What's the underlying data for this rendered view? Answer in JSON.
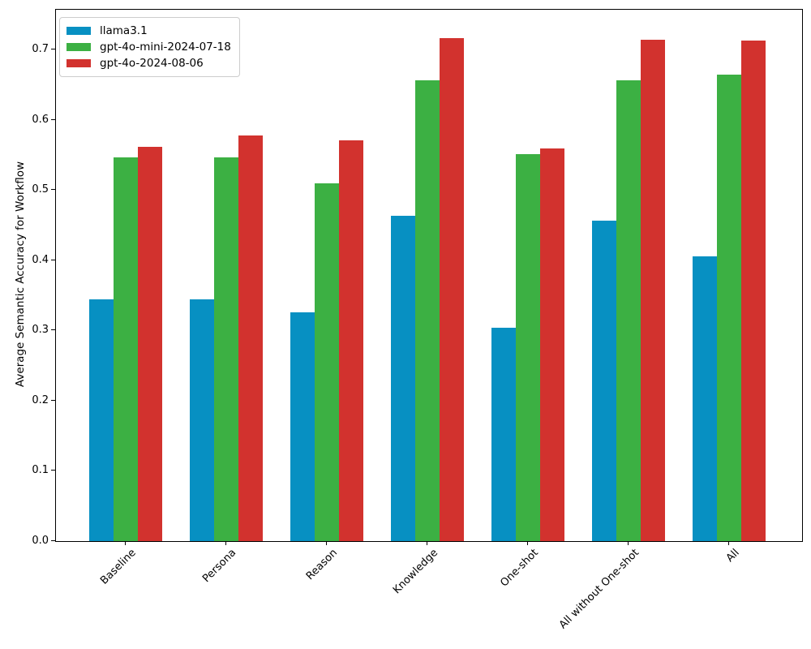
{
  "chart_data": {
    "type": "bar",
    "title": "",
    "xlabel": "",
    "ylabel": "Average Semantic Accuracy for Workflow",
    "categories": [
      "Baseline",
      "Persona",
      "Reason",
      "Knowledge",
      "One-shot",
      "All without One-shot",
      "All"
    ],
    "series": [
      {
        "name": "llama3.1",
        "color": "#0790c2",
        "values": [
          0.345,
          0.345,
          0.326,
          0.464,
          0.304,
          0.456,
          0.406
        ]
      },
      {
        "name": "gpt-4o-mini-2024-07-18",
        "color": "#3cb043",
        "values": [
          0.547,
          0.547,
          0.51,
          0.656,
          0.551,
          0.656,
          0.664
        ]
      },
      {
        "name": "gpt-4o-2024-08-06",
        "color": "#d2322e",
        "values": [
          0.562,
          0.578,
          0.571,
          0.717,
          0.559,
          0.714,
          0.713
        ]
      }
    ],
    "ylim": [
      0,
      0.757
    ],
    "yticks": [
      0.0,
      0.1,
      0.2,
      0.3,
      0.4,
      0.5,
      0.6,
      0.7
    ],
    "ytick_labels": [
      "0.0",
      "0.1",
      "0.2",
      "0.3",
      "0.4",
      "0.5",
      "0.6",
      "0.7"
    ],
    "grid": false,
    "legend_position": "upper left",
    "x_tick_rotation": 45
  }
}
